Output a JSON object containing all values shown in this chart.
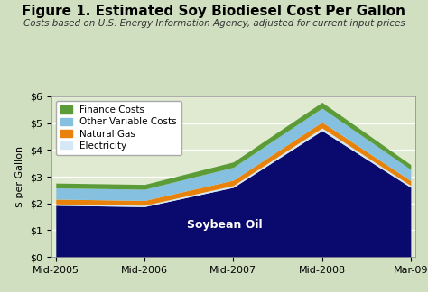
{
  "title": "Figure 1. Estimated Soy Biodiesel Cost Per Gallon",
  "subtitle": "Costs based on U.S. Energy Information Agency, adjusted for current input prices",
  "ylabel": "$ per Gallon",
  "x_labels": [
    "Mid-2005",
    "Mid-2006",
    "Mid-2007",
    "Mid-2008",
    "Mar-09"
  ],
  "x_values": [
    0,
    1,
    2,
    3,
    4
  ],
  "soybean_oil": [
    1.93,
    1.88,
    2.6,
    4.72,
    2.6
  ],
  "electricity": [
    0.05,
    0.05,
    0.07,
    0.1,
    0.07
  ],
  "natural_gas": [
    0.18,
    0.18,
    0.2,
    0.22,
    0.18
  ],
  "other_variable": [
    0.42,
    0.42,
    0.48,
    0.52,
    0.42
  ],
  "finance_costs": [
    0.18,
    0.18,
    0.2,
    0.22,
    0.18
  ],
  "colors": {
    "soybean_oil": "#0a0a6e",
    "electricity": "#d6e8f5",
    "natural_gas": "#e8820a",
    "other_variable": "#86c0e0",
    "finance_costs": "#5c9c38"
  },
  "ylim": [
    0,
    6
  ],
  "yticks": [
    0,
    1,
    2,
    3,
    4,
    5,
    6
  ],
  "ytick_labels": [
    "$0",
    "$1",
    "$2",
    "$3",
    "$4",
    "$5",
    "$6"
  ],
  "background_color": "#d0dfc0",
  "plot_background": "#e0ead0",
  "legend_labels": [
    "Finance Costs",
    "Other Variable Costs",
    "Natural Gas",
    "Electricity"
  ],
  "soybean_label": "Soybean Oil",
  "title_fontsize": 11,
  "subtitle_fontsize": 7.5,
  "axis_fontsize": 8,
  "legend_fontsize": 7.5,
  "soybean_fontsize": 9
}
